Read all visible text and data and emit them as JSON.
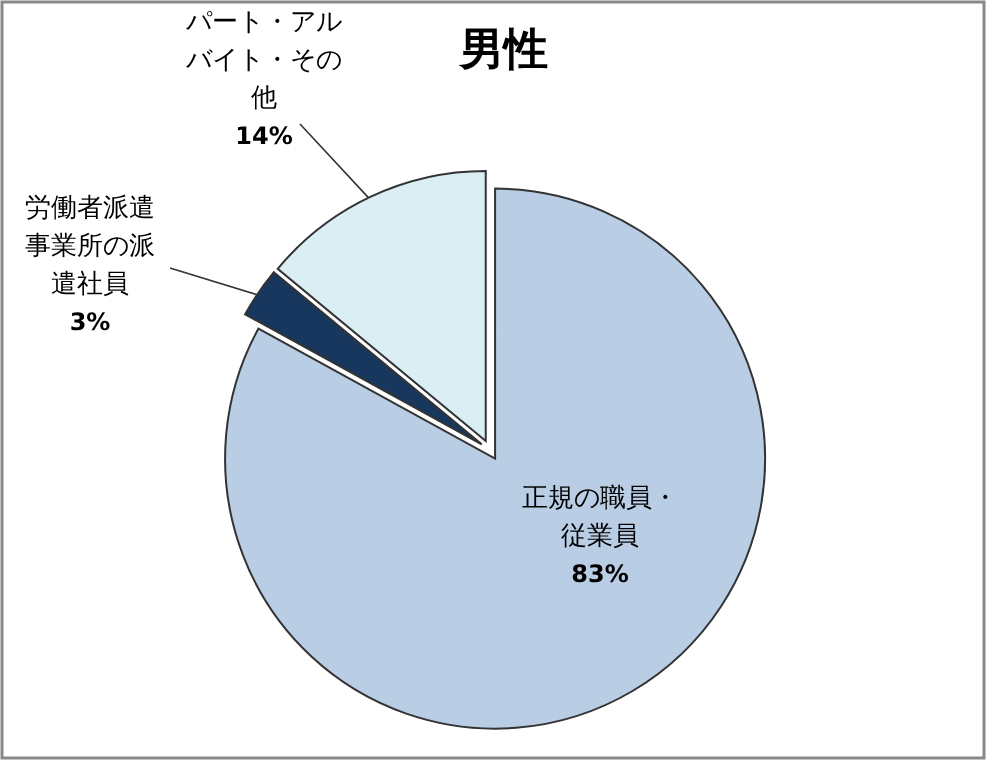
{
  "chart_data": {
    "type": "pie",
    "title": "男性",
    "categories": [
      "正規の職員・従業員",
      "労働者派遣事業所の派遣社員",
      "パート・アルバイト・その他"
    ],
    "values": [
      83,
      3,
      14
    ],
    "colors": [
      "#b9cde5",
      "#17375e",
      "#dbeef4"
    ],
    "value_labels": [
      "83%",
      "3%",
      "14%"
    ]
  }
}
